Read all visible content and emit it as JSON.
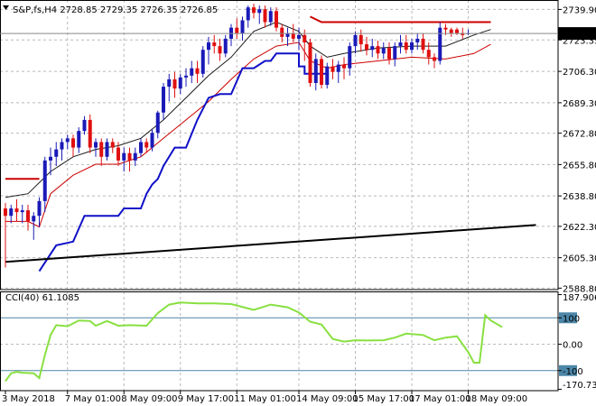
{
  "window": {
    "header": "S&P,fs,H4  2728.85 2729.35 2726.35 2726.85",
    "menu_icon": "triangle-down-icon"
  },
  "colors": {
    "bull": "#1a1ab8",
    "bear": "#e01010",
    "inner_band": "#1a1a1a",
    "outer_band": "#cc0000",
    "step_line": "#1010c8",
    "trend_line": "#000000",
    "cci": "#88e040",
    "current_price_bg": "#000000",
    "current_price_fg": "#ffffff",
    "grid": "#b9b9b9"
  },
  "chart_data": [
    {
      "type": "candlestick",
      "title": "S&P,fs,H4",
      "ohlc_header": {
        "open": 2728.85,
        "high": 2729.35,
        "low": 2726.35,
        "close": 2726.85
      },
      "current_price": "2726.85",
      "ylim": [
        2588.0,
        2745.0
      ],
      "y_ticks": [
        "2739.90",
        "2723.35",
        "2706.30",
        "2689.30",
        "2672.80",
        "2655.80",
        "2638.80",
        "2622.30",
        "2605.30",
        "2588.80"
      ],
      "x_tick_labels": [
        "3 May 2018",
        "7 May 01:00",
        "8 May 09:00",
        "9 May 17:00",
        "11 May 01:00",
        "14 May 09:00",
        "15 May 17:00",
        "17 May 01:00",
        "18 May 09:00"
      ],
      "x_tick_index": [
        0,
        11,
        21,
        31,
        41,
        52,
        62,
        72,
        82
      ],
      "grid": true,
      "candles": [
        [
          2632,
          2635,
          2600,
          2628
        ],
        [
          2628,
          2634,
          2624,
          2632
        ],
        [
          2632,
          2637,
          2625,
          2630
        ],
        [
          2630,
          2634,
          2624,
          2631
        ],
        [
          2631,
          2634,
          2620,
          2625
        ],
        [
          2625,
          2630,
          2615,
          2628
        ],
        [
          2628,
          2638,
          2622,
          2636
        ],
        [
          2636,
          2660,
          2630,
          2658
        ],
        [
          2658,
          2665,
          2650,
          2660
        ],
        [
          2660,
          2668,
          2655,
          2664
        ],
        [
          2664,
          2670,
          2658,
          2668
        ],
        [
          2668,
          2672,
          2664,
          2670
        ],
        [
          2670,
          2672,
          2660,
          2665
        ],
        [
          2665,
          2676,
          2662,
          2674
        ],
        [
          2674,
          2682,
          2672,
          2680
        ],
        [
          2680,
          2683,
          2662,
          2665
        ],
        [
          2665,
          2670,
          2660,
          2668
        ],
        [
          2668,
          2670,
          2655,
          2660
        ],
        [
          2660,
          2670,
          2658,
          2668
        ],
        [
          2668,
          2670,
          2662,
          2665
        ],
        [
          2665,
          2668,
          2655,
          2658
        ],
        [
          2658,
          2665,
          2652,
          2662
        ],
        [
          2662,
          2665,
          2652,
          2658
        ],
        [
          2658,
          2665,
          2655,
          2662
        ],
        [
          2662,
          2670,
          2660,
          2668
        ],
        [
          2668,
          2670,
          2662,
          2665
        ],
        [
          2665,
          2675,
          2663,
          2673
        ],
        [
          2673,
          2685,
          2670,
          2684
        ],
        [
          2684,
          2700,
          2680,
          2698
        ],
        [
          2698,
          2705,
          2690,
          2702
        ],
        [
          2702,
          2706,
          2692,
          2697
        ],
        [
          2697,
          2705,
          2694,
          2703
        ],
        [
          2703,
          2708,
          2698,
          2704
        ],
        [
          2704,
          2712,
          2700,
          2708
        ],
        [
          2708,
          2712,
          2700,
          2705
        ],
        [
          2705,
          2720,
          2703,
          2718
        ],
        [
          2718,
          2725,
          2710,
          2722
        ],
        [
          2722,
          2726,
          2716,
          2720
        ],
        [
          2720,
          2724,
          2712,
          2716
        ],
        [
          2716,
          2726,
          2714,
          2724
        ],
        [
          2724,
          2732,
          2720,
          2730
        ],
        [
          2730,
          2735,
          2724,
          2727
        ],
        [
          2727,
          2736,
          2723,
          2734
        ],
        [
          2734,
          2742,
          2730,
          2741
        ],
        [
          2741,
          2743,
          2735,
          2738
        ],
        [
          2738,
          2742,
          2732,
          2740
        ],
        [
          2740,
          2742,
          2730,
          2733
        ],
        [
          2733,
          2741,
          2731,
          2739
        ],
        [
          2739,
          2741,
          2728,
          2730
        ],
        [
          2730,
          2732,
          2722,
          2725
        ],
        [
          2725,
          2730,
          2720,
          2727
        ],
        [
          2727,
          2732,
          2722,
          2724
        ],
        [
          2724,
          2730,
          2718,
          2726
        ],
        [
          2726,
          2729,
          2712,
          2722
        ],
        [
          2722,
          2724,
          2698,
          2700
        ],
        [
          2700,
          2716,
          2696,
          2713
        ],
        [
          2713,
          2715,
          2697,
          2699
        ],
        [
          2699,
          2711,
          2697,
          2709
        ],
        [
          2709,
          2713,
          2702,
          2706
        ],
        [
          2706,
          2712,
          2700,
          2710
        ],
        [
          2710,
          2714,
          2702,
          2708
        ],
        [
          2708,
          2722,
          2704,
          2720
        ],
        [
          2720,
          2728,
          2716,
          2726
        ],
        [
          2726,
          2729,
          2717,
          2721
        ],
        [
          2721,
          2725,
          2715,
          2718
        ],
        [
          2718,
          2724,
          2714,
          2720
        ],
        [
          2720,
          2723,
          2713,
          2716
        ],
        [
          2716,
          2722,
          2713,
          2719
        ],
        [
          2719,
          2722,
          2710,
          2713
        ],
        [
          2713,
          2722,
          2709,
          2720
        ],
        [
          2720,
          2726,
          2716,
          2722
        ],
        [
          2722,
          2726,
          2716,
          2718
        ],
        [
          2718,
          2724,
          2716,
          2722
        ],
        [
          2722,
          2727,
          2718,
          2724
        ],
        [
          2724,
          2727,
          2716,
          2718
        ],
        [
          2718,
          2722,
          2710,
          2714
        ],
        [
          2714,
          2716,
          2708,
          2712
        ],
        [
          2712,
          2733,
          2710,
          2730
        ],
        [
          2730,
          2732,
          2726,
          2729
        ],
        [
          2729,
          2730,
          2725,
          2727
        ],
        [
          2729,
          2730,
          2726,
          2727
        ],
        [
          2727,
          2730,
          2724,
          2726
        ],
        [
          2727,
          2729,
          2726,
          2727
        ]
      ],
      "overlays": [
        {
          "style": "inner_band",
          "points": [
            [
              0,
              2638
            ],
            [
              4,
              2640
            ],
            [
              8,
              2652
            ],
            [
              12,
              2660
            ],
            [
              16,
              2664
            ],
            [
              20,
              2666
            ],
            [
              24,
              2670
            ],
            [
              28,
              2680
            ],
            [
              32,
              2692
            ],
            [
              36,
              2704
            ],
            [
              40,
              2714
            ],
            [
              44,
              2728
            ],
            [
              48,
              2733
            ],
            [
              52,
              2728
            ],
            [
              54,
              2720
            ],
            [
              57,
              2714
            ],
            [
              60,
              2716
            ],
            [
              66,
              2719
            ],
            [
              72,
              2720
            ],
            [
              78,
              2720
            ],
            [
              83,
              2726
            ],
            [
              86,
              2729
            ]
          ]
        },
        {
          "style": "outer_band",
          "points": [
            [
              0,
              2625
            ],
            [
              4,
              2625
            ],
            [
              6,
              2622
            ],
            [
              8,
              2640
            ],
            [
              12,
              2650
            ],
            [
              16,
              2656
            ],
            [
              20,
              2656
            ],
            [
              24,
              2660
            ],
            [
              28,
              2670
            ],
            [
              32,
              2680
            ],
            [
              36,
              2690
            ],
            [
              40,
              2702
            ],
            [
              44,
              2713
            ],
            [
              48,
              2720
            ],
            [
              52,
              2722
            ],
            [
              54,
              2712
            ],
            [
              57,
              2708
            ],
            [
              60,
              2710
            ],
            [
              66,
              2712
            ],
            [
              72,
              2714
            ],
            [
              78,
              2713
            ],
            [
              83,
              2716
            ],
            [
              86,
              2721
            ]
          ]
        },
        {
          "style": "outer_band",
          "points": [
            [
              0,
              2648
            ],
            [
              6,
              2648
            ]
          ]
        },
        {
          "style": "outer_band",
          "points": [
            [
              54,
              2736
            ],
            [
              56,
              2733
            ],
            [
              86,
              2733
            ]
          ]
        },
        {
          "style": "step_line",
          "points": [
            [
              6,
              2598
            ],
            [
              9,
              2612
            ],
            [
              12,
              2614
            ],
            [
              14,
              2628
            ],
            [
              20,
              2628
            ],
            [
              21,
              2632
            ],
            [
              24,
              2632
            ],
            [
              25,
              2640
            ],
            [
              26,
              2645
            ],
            [
              27,
              2648
            ],
            [
              28,
              2655
            ],
            [
              30,
              2665
            ],
            [
              32,
              2665
            ],
            [
              34,
              2680
            ],
            [
              36,
              2692
            ],
            [
              38,
              2694
            ],
            [
              40,
              2694
            ],
            [
              42,
              2708
            ],
            [
              44,
              2708
            ],
            [
              46,
              2712
            ],
            [
              47,
              2712
            ],
            [
              48,
              2716
            ],
            [
              52,
              2716
            ],
            [
              52,
              2709
            ],
            [
              53,
              2709
            ],
            [
              53,
              2705
            ],
            [
              57,
              2705
            ]
          ]
        },
        {
          "style": "trend_line",
          "points": [
            [
              0,
              2603
            ],
            [
              94,
              2623
            ]
          ]
        }
      ]
    },
    {
      "type": "line",
      "title": "CCI(40) 61.1085",
      "ylim": [
        -176,
        200
      ],
      "y_ticks": [
        "187.9065",
        "100",
        "0.00",
        "-100",
        "-170.7363"
      ],
      "levels": [
        100,
        -100
      ],
      "series": [
        {
          "name": "CCI(40)",
          "values": [
            [
              0,
              -140
            ],
            [
              1,
              -110
            ],
            [
              2,
              -105
            ],
            [
              3,
              -108
            ],
            [
              5,
              -110
            ],
            [
              6,
              -128
            ],
            [
              7,
              -40
            ],
            [
              8,
              35
            ],
            [
              9,
              72
            ],
            [
              11,
              68
            ],
            [
              13,
              90
            ],
            [
              15,
              88
            ],
            [
              16,
              70
            ],
            [
              18,
              88
            ],
            [
              20,
              70
            ],
            [
              22,
              72
            ],
            [
              25,
              70
            ],
            [
              27,
              118
            ],
            [
              29,
              150
            ],
            [
              31,
              158
            ],
            [
              34,
              155
            ],
            [
              37,
              155
            ],
            [
              40,
              152
            ],
            [
              44,
              130
            ],
            [
              47,
              150
            ],
            [
              50,
              140
            ],
            [
              52,
              120
            ],
            [
              54,
              85
            ],
            [
              56,
              75
            ],
            [
              58,
              20
            ],
            [
              60,
              10
            ],
            [
              62,
              15
            ],
            [
              64,
              14
            ],
            [
              67,
              15
            ],
            [
              69,
              25
            ],
            [
              71,
              40
            ],
            [
              74,
              35
            ],
            [
              76,
              15
            ],
            [
              78,
              25
            ],
            [
              80,
              30
            ],
            [
              82,
              -30
            ],
            [
              83,
              -70
            ],
            [
              84,
              -70
            ],
            [
              85,
              110
            ],
            [
              86,
              90
            ],
            [
              88,
              65
            ]
          ]
        }
      ]
    }
  ]
}
